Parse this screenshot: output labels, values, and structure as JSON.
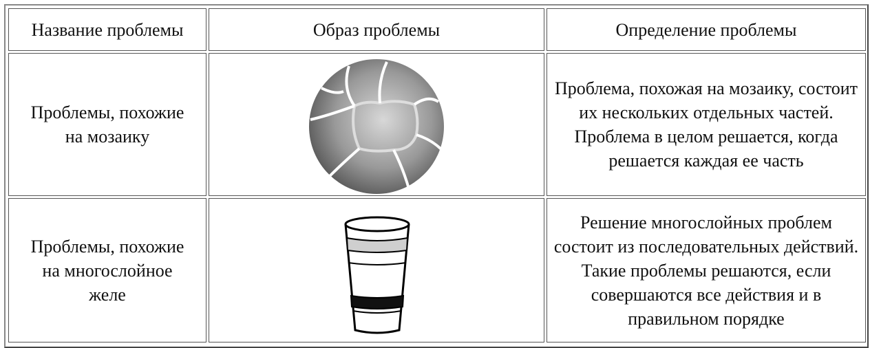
{
  "table": {
    "headers": [
      "Название проблемы",
      "Образ проблемы",
      "Определение проблемы"
    ],
    "rows": [
      {
        "name": "Проблемы, похожие на мозаику",
        "definition": "Проблема, похожая на мозаику, состоит их нескольких отдельных частей. Проблема в целом решается, когда решается каждая ее часть"
      },
      {
        "name": "Проблемы, похожие на многослойное желе",
        "definition": "Решение многослойных проблем состоит из последовательных действий. Такие проблемы решаются, если совершаются все действия и в правильном порядке"
      }
    ]
  }
}
